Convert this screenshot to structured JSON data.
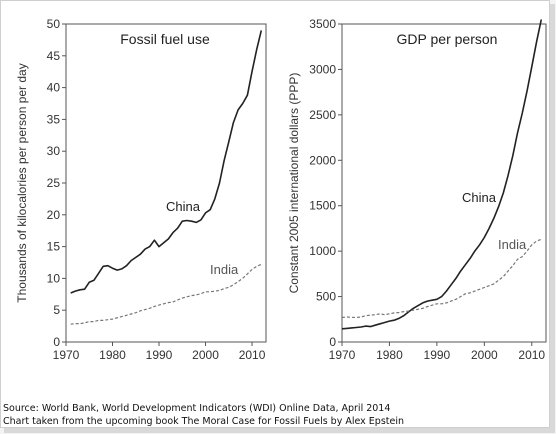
{
  "source_lines": [
    "Source: World Bank, World Development Indicators (WDI) Online Data, April 2014",
    "Chart taken from the upcoming book The Moral Case for Fossil Fuels by Alex Epstein"
  ],
  "chart_data": [
    {
      "type": "line",
      "title": "Fossil fuel use",
      "xlabel": "",
      "ylabel": "Thousands of kilocalories per person per day",
      "xlim": [
        1970,
        2013
      ],
      "ylim": [
        0,
        50
      ],
      "xticks": [
        1970,
        1980,
        1990,
        2000,
        2010
      ],
      "yticks": [
        0,
        5,
        10,
        15,
        20,
        25,
        30,
        35,
        40,
        45,
        50
      ],
      "grid": false,
      "x": [
        1971,
        1972,
        1973,
        1974,
        1975,
        1976,
        1977,
        1978,
        1979,
        1980,
        1981,
        1982,
        1983,
        1984,
        1985,
        1986,
        1987,
        1988,
        1989,
        1990,
        1991,
        1992,
        1993,
        1994,
        1995,
        1996,
        1997,
        1998,
        1999,
        2000,
        2001,
        2002,
        2003,
        2004,
        2005,
        2006,
        2007,
        2008,
        2009,
        2010,
        2011,
        2012
      ],
      "series": [
        {
          "name": "China",
          "style": "solid",
          "values": [
            7.7,
            8.0,
            8.2,
            8.3,
            9.4,
            9.7,
            10.8,
            11.9,
            12.0,
            11.6,
            11.3,
            11.5,
            12.0,
            12.8,
            13.3,
            13.8,
            14.6,
            15.0,
            16.0,
            15.0,
            15.6,
            16.2,
            17.2,
            17.9,
            19.0,
            19.1,
            19.0,
            18.8,
            19.2,
            20.3,
            20.8,
            22.5,
            25.0,
            28.5,
            31.5,
            34.5,
            36.5,
            37.5,
            38.8,
            42.5,
            46.0,
            49.0
          ]
        },
        {
          "name": "India",
          "style": "dashed",
          "values": [
            2.8,
            2.9,
            2.9,
            3.0,
            3.2,
            3.2,
            3.4,
            3.4,
            3.5,
            3.6,
            3.8,
            4.0,
            4.2,
            4.4,
            4.6,
            4.9,
            5.1,
            5.3,
            5.6,
            5.8,
            6.0,
            6.2,
            6.3,
            6.6,
            6.9,
            7.1,
            7.3,
            7.4,
            7.6,
            7.9,
            7.9,
            8.0,
            8.1,
            8.4,
            8.6,
            9.0,
            9.5,
            10.0,
            10.7,
            11.4,
            11.9,
            12.2
          ]
        }
      ],
      "colors": {
        "China": "#222222",
        "India": "#777777"
      }
    },
    {
      "type": "line",
      "title": "GDP per person",
      "xlabel": "",
      "ylabel": "Constant 2005 international dollars (PPP)",
      "xlim": [
        1970,
        2013
      ],
      "ylim": [
        0,
        3500
      ],
      "xticks": [
        1970,
        1980,
        1990,
        2000,
        2010
      ],
      "yticks": [
        0,
        500,
        1000,
        1500,
        2000,
        2500,
        3000,
        3500
      ],
      "grid": false,
      "x": [
        1970,
        1971,
        1972,
        1973,
        1974,
        1975,
        1976,
        1977,
        1978,
        1979,
        1980,
        1981,
        1982,
        1983,
        1984,
        1985,
        1986,
        1987,
        1988,
        1989,
        1990,
        1991,
        1992,
        1993,
        1994,
        1995,
        1996,
        1997,
        1998,
        1999,
        2000,
        2001,
        2002,
        2003,
        2004,
        2005,
        2006,
        2007,
        2008,
        2009,
        2010,
        2011,
        2012
      ],
      "series": [
        {
          "name": "China",
          "style": "solid",
          "values": [
            145,
            150,
            155,
            160,
            165,
            175,
            170,
            185,
            200,
            215,
            230,
            240,
            260,
            290,
            330,
            370,
            400,
            430,
            450,
            460,
            470,
            500,
            560,
            630,
            700,
            780,
            850,
            920,
            1000,
            1070,
            1150,
            1250,
            1360,
            1490,
            1640,
            1830,
            2050,
            2300,
            2520,
            2760,
            3030,
            3300,
            3550
          ]
        },
        {
          "name": "India",
          "style": "dashed",
          "values": [
            270,
            275,
            272,
            270,
            275,
            290,
            295,
            300,
            310,
            300,
            310,
            320,
            325,
            335,
            340,
            350,
            360,
            370,
            390,
            405,
            420,
            420,
            430,
            450,
            470,
            500,
            530,
            540,
            560,
            580,
            600,
            620,
            640,
            680,
            720,
            780,
            840,
            910,
            940,
            1000,
            1070,
            1110,
            1130
          ]
        }
      ],
      "colors": {
        "China": "#222222",
        "India": "#777777"
      }
    }
  ]
}
